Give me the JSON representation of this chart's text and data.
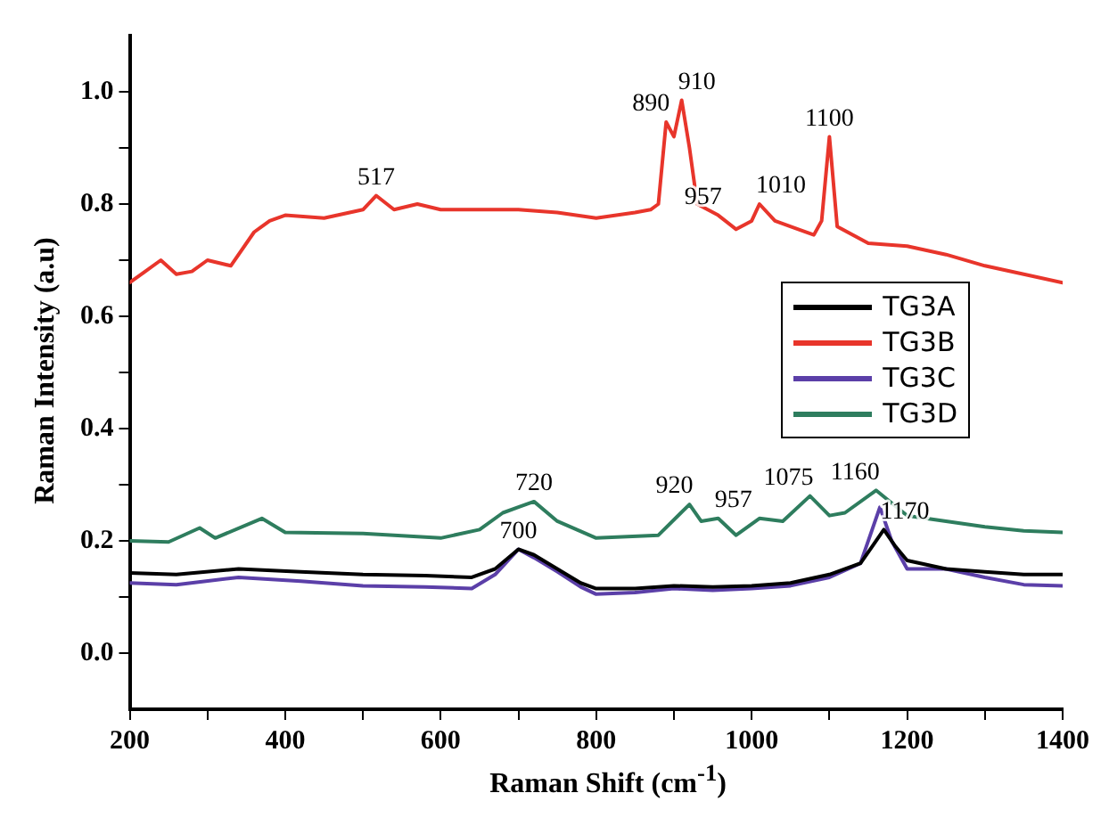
{
  "chart_data": {
    "type": "line",
    "xlabel": "Raman Shift (cm$^{-1}$)",
    "ylabel": "Raman Intensity (a.u)",
    "xlim": [
      200,
      1400
    ],
    "ylim": [
      -0.1,
      1.1
    ],
    "xticks": [
      200,
      {
        "value": 300,
        "label": null
      },
      400,
      {
        "value": 500,
        "label": null
      },
      600,
      {
        "value": 700,
        "label": null
      },
      800,
      {
        "value": 900,
        "label": null
      },
      1000,
      {
        "value": 1100,
        "label": null
      },
      1200,
      {
        "value": 1300,
        "label": null
      },
      1400
    ],
    "yticks": [
      {
        "value": 0,
        "label": "0.0"
      },
      {
        "value": 0.1,
        "label": null
      },
      {
        "value": 0.2,
        "label": "0.2"
      },
      {
        "value": 0.3,
        "label": null
      },
      {
        "value": 0.4,
        "label": "0.4"
      },
      {
        "value": 0.5,
        "label": null
      },
      {
        "value": 0.6,
        "label": "0.6"
      },
      {
        "value": 0.7,
        "label": null
      },
      {
        "value": 0.8,
        "label": "0.8"
      },
      {
        "value": 0.9,
        "label": null
      },
      {
        "value": 1.0,
        "label": "1.0"
      }
    ],
    "grid": false,
    "legend": "right",
    "marker": "none",
    "line_style": "solid",
    "series": [
      {
        "name": "TG3A",
        "color": "#000000",
        "x": [
          200,
          260,
          340,
          420,
          500,
          580,
          640,
          670,
          700,
          720,
          750,
          780,
          800,
          850,
          900,
          950,
          1000,
          1050,
          1100,
          1140,
          1155,
          1170,
          1185,
          1200,
          1250,
          1300,
          1350,
          1400
        ],
        "values": [
          0.143,
          0.14,
          0.15,
          0.145,
          0.14,
          0.138,
          0.135,
          0.15,
          0.185,
          0.175,
          0.15,
          0.125,
          0.115,
          0.115,
          0.12,
          0.118,
          0.12,
          0.125,
          0.14,
          0.16,
          0.19,
          0.22,
          0.19,
          0.165,
          0.15,
          0.145,
          0.14,
          0.14
        ]
      },
      {
        "name": "TG3B",
        "color": "#e8352b",
        "x": [
          200,
          220,
          240,
          260,
          280,
          300,
          330,
          360,
          380,
          400,
          450,
          500,
          517,
          540,
          570,
          600,
          650,
          700,
          750,
          800,
          850,
          870,
          880,
          890,
          900,
          910,
          920,
          930,
          957,
          980,
          1000,
          1010,
          1030,
          1060,
          1080,
          1090,
          1100,
          1110,
          1150,
          1200,
          1250,
          1300,
          1350,
          1400
        ],
        "values": [
          0.66,
          0.68,
          0.7,
          0.675,
          0.68,
          0.7,
          0.69,
          0.75,
          0.77,
          0.78,
          0.775,
          0.79,
          0.815,
          0.79,
          0.8,
          0.79,
          0.79,
          0.79,
          0.785,
          0.775,
          0.785,
          0.79,
          0.8,
          0.946,
          0.92,
          0.985,
          0.9,
          0.8,
          0.78,
          0.755,
          0.77,
          0.8,
          0.77,
          0.755,
          0.745,
          0.77,
          0.92,
          0.76,
          0.73,
          0.725,
          0.71,
          0.69,
          0.675,
          0.66
        ]
      },
      {
        "name": "TG3C",
        "color": "#5b3fa8",
        "x": [
          200,
          260,
          340,
          420,
          500,
          580,
          640,
          670,
          700,
          720,
          750,
          780,
          800,
          850,
          900,
          950,
          1000,
          1050,
          1100,
          1140,
          1155,
          1165,
          1180,
          1200,
          1250,
          1300,
          1350,
          1400
        ],
        "values": [
          0.125,
          0.122,
          0.135,
          0.128,
          0.12,
          0.118,
          0.115,
          0.14,
          0.185,
          0.17,
          0.145,
          0.118,
          0.105,
          0.108,
          0.115,
          0.112,
          0.115,
          0.12,
          0.135,
          0.16,
          0.22,
          0.26,
          0.2,
          0.15,
          0.15,
          0.135,
          0.122,
          0.12
        ]
      },
      {
        "name": "TG3D",
        "color": "#2e7d5e",
        "x": [
          200,
          250,
          290,
          310,
          370,
          400,
          500,
          600,
          650,
          680,
          700,
          720,
          750,
          800,
          880,
          920,
          935,
          957,
          980,
          1010,
          1040,
          1075,
          1100,
          1120,
          1160,
          1200,
          1250,
          1300,
          1350,
          1400
        ],
        "values": [
          0.2,
          0.198,
          0.223,
          0.205,
          0.24,
          0.215,
          0.213,
          0.205,
          0.22,
          0.25,
          0.26,
          0.27,
          0.235,
          0.205,
          0.21,
          0.265,
          0.235,
          0.24,
          0.21,
          0.24,
          0.235,
          0.28,
          0.245,
          0.25,
          0.29,
          0.245,
          0.235,
          0.225,
          0.218,
          0.215
        ]
      }
    ],
    "annotations": [
      {
        "text": "517",
        "x": 517,
        "y": 0.815
      },
      {
        "text": "890",
        "x": 890,
        "y": 0.946
      },
      {
        "text": "910",
        "x": 910,
        "y": 0.985
      },
      {
        "text": "957",
        "x": 957,
        "y": 0.78
      },
      {
        "text": "1010",
        "x": 1010,
        "y": 0.8
      },
      {
        "text": "1100",
        "x": 1100,
        "y": 0.92
      },
      {
        "text": "720",
        "x": 720,
        "y": 0.27
      },
      {
        "text": "700",
        "x": 700,
        "y": 0.185
      },
      {
        "text": "920",
        "x": 920,
        "y": 0.265
      },
      {
        "text": "957",
        "x": 957,
        "y": 0.24
      },
      {
        "text": "1075",
        "x": 1075,
        "y": 0.28
      },
      {
        "text": "1160",
        "x": 1160,
        "y": 0.29
      },
      {
        "text": "1170",
        "x": 1170,
        "y": 0.22
      }
    ]
  }
}
